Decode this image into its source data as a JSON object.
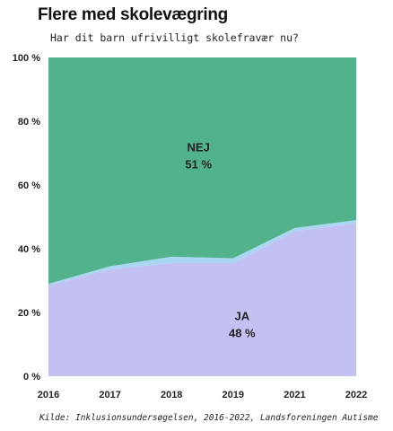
{
  "header": {
    "title": "Flere med skolevægring",
    "subtitle": "Har dit barn ufrivilligt skolefravær nu?"
  },
  "source": "Kilde: Inklusionsundersøgelsen, 2016-2022, Landsforeningen Autisme",
  "colors": {
    "nej": "#52b28c",
    "ja": "#c3c0f2",
    "other": "#a9d6f0"
  },
  "chart_data": {
    "type": "area",
    "stacked": true,
    "x": [
      "2016",
      "2017",
      "2018",
      "2019",
      "2021",
      "2022"
    ],
    "series": [
      {
        "key": "ja",
        "values": [
          28.5,
          33.5,
          35.5,
          35.5,
          45.5,
          48
        ]
      },
      {
        "key": "other",
        "values": [
          0.5,
          1,
          2,
          1.5,
          1,
          1
        ]
      },
      {
        "key": "nej",
        "values": [
          71,
          65.5,
          62.5,
          63,
          53.5,
          51
        ]
      }
    ],
    "ylim": [
      0,
      100
    ],
    "yticks": [
      0,
      20,
      40,
      60,
      80,
      100
    ],
    "ytick_labels": [
      "0 %",
      "20 %",
      "40 %",
      "60 %",
      "80 %",
      "100 %"
    ],
    "annotations": [
      {
        "series": "nej",
        "label": "NEJ",
        "value": "51 %",
        "x": 2,
        "y": 70
      },
      {
        "series": "ja",
        "label": "JA",
        "value": "48 %",
        "x": 3,
        "y": 17
      }
    ],
    "grid": false,
    "legend": "none"
  }
}
